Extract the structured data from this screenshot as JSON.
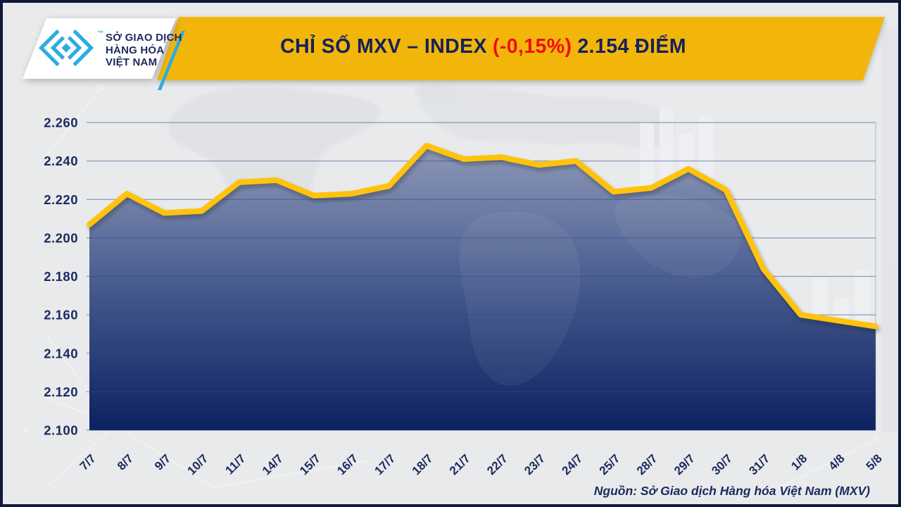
{
  "header": {
    "logo": {
      "line1": "SỞ GIAO DỊCH",
      "line2": "HÀNG HÓA",
      "line3": "VIỆT NAM",
      "tm": "™"
    },
    "title": {
      "part1": "CHỈ SỐ MXV – INDEX",
      "part2": "(-0,15%)",
      "part3": "2.154 ĐIỂM"
    }
  },
  "footer": {
    "source": "Nguồn: Sở Giao dịch Hàng hóa Việt Nam (MXV)"
  },
  "colors": {
    "background": "#e9eaec",
    "banner_yellow": "#f2b60b",
    "line_yellow": "#ffc30d",
    "navy_text": "#1b2a5e",
    "title_navy": "#14215a",
    "red": "#f50b0f",
    "cyan": "#2bace2",
    "logo_card_white": "#ffffff",
    "gridline": "rgba(47,72,140,0.5)"
  },
  "chart_data": {
    "type": "area",
    "title": "CHỈ SỐ MXV – INDEX (-0,15%) 2.154 ĐIỂM",
    "unit": "điểm",
    "change_percent": "-0,15%",
    "last_value_label": "2.154",
    "categories": [
      "7/7",
      "8/7",
      "9/7",
      "10/7",
      "11/7",
      "14/7",
      "15/7",
      "16/7",
      "17/7",
      "18/7",
      "21/7",
      "22/7",
      "23/7",
      "24/7",
      "25/7",
      "28/7",
      "29/7",
      "30/7",
      "31/7",
      "1/8",
      "4/8",
      "5/8"
    ],
    "values": [
      2207,
      2223,
      2213,
      2214,
      2229,
      2230,
      2222,
      2223,
      2227,
      2248,
      2241,
      2242,
      2238,
      2240,
      2224,
      2226,
      2236,
      2225,
      2184,
      2160,
      2157,
      2154
    ],
    "ylim": [
      2100,
      2260
    ],
    "yticks": [
      2100,
      2120,
      2140,
      2160,
      2180,
      2200,
      2220,
      2240,
      2260
    ],
    "grid": true,
    "legend": false,
    "line_color": "#ffc30d",
    "area_gradient_top": "#99a3bf",
    "area_gradient_mid": "#44588c",
    "area_gradient_bottom": "#0c2160"
  }
}
